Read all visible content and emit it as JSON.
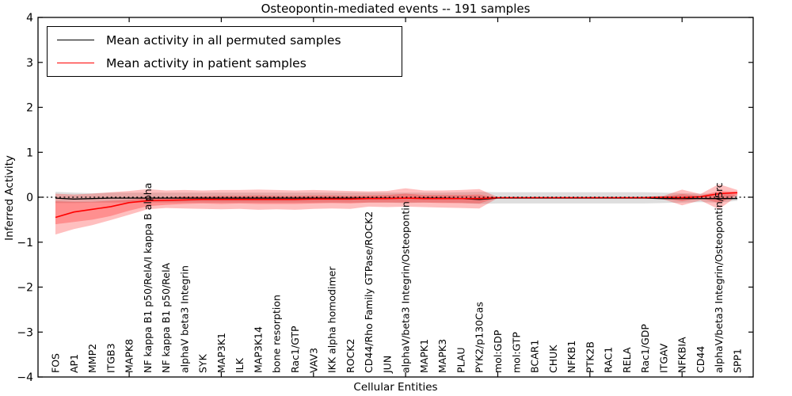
{
  "figure": {
    "background": "#ffffff"
  },
  "legend": {
    "items": [
      {
        "label": "Mean activity in all permuted samples",
        "color": "#000000"
      },
      {
        "label": "Mean activity in patient samples",
        "color": "#ff0000"
      }
    ]
  },
  "chart_data": {
    "type": "line",
    "title": "Osteopontin-mediated events -- 191 samples",
    "xlabel": "Cellular Entities",
    "ylabel": "Inferred Activity",
    "ylim": [
      -4,
      4
    ],
    "yticks": [
      -4,
      -3,
      -2,
      -1,
      0,
      1,
      2,
      3,
      4
    ],
    "xtick_every": 5,
    "grid": false,
    "legend_position": "upper left",
    "zero_line": 0,
    "colors": {
      "patient": "#ff0000",
      "permuted": "#000000",
      "patient_band": "#ff0000",
      "permuted_band": "#999999"
    },
    "categories": [
      "FOS",
      "AP1",
      "MMP2",
      "ITGB3",
      "MAPK8",
      "NF kappa B1 p50/RelA/I kappa B alpha",
      "NF kappa B1 p50/RelA",
      "alphaV beta3 Integrin",
      "SYK",
      "MAP3K1",
      "ILK",
      "MAP3K14",
      "bone resorption",
      "Rac1/GTP",
      "VAV3",
      "IKK alpha homodimer",
      "ROCK2",
      "CD44/Rho Family GTPase/ROCK2",
      "JUN",
      "alphaV/beta3 Integrin/Osteopontin",
      "MAPK1",
      "MAPK3",
      "PLAU",
      "PYK2/p130Cas",
      "mol:GDP",
      "mol:GTP",
      "BCAR1",
      "CHUK",
      "NFKB1",
      "PTK2B",
      "RAC1",
      "RELA",
      "Rac1/GDP",
      "ITGAV",
      "NFKBIA",
      "CD44",
      "alphaV/beta3 Integrin/Osteopontin/Src",
      "SPP1"
    ],
    "series": [
      {
        "name": "Mean activity in all permuted samples",
        "color": "#000000",
        "values": [
          -0.02,
          -0.04,
          -0.03,
          -0.02,
          -0.02,
          -0.02,
          -0.02,
          -0.02,
          -0.02,
          -0.02,
          -0.02,
          -0.02,
          -0.02,
          -0.02,
          -0.02,
          -0.02,
          -0.02,
          -0.02,
          -0.02,
          -0.02,
          -0.02,
          -0.02,
          -0.03,
          -0.05,
          -0.02,
          -0.02,
          -0.02,
          -0.02,
          -0.02,
          -0.02,
          -0.02,
          -0.02,
          -0.02,
          -0.03,
          -0.03,
          -0.03,
          -0.03,
          -0.03
        ]
      },
      {
        "name": "Mean activity in patient samples",
        "color": "#ff0000",
        "values": [
          -0.45,
          -0.33,
          -0.27,
          -0.21,
          -0.12,
          -0.08,
          -0.07,
          -0.06,
          -0.05,
          -0.05,
          -0.05,
          -0.05,
          -0.05,
          -0.05,
          -0.04,
          -0.04,
          -0.04,
          -0.03,
          -0.03,
          -0.02,
          -0.03,
          -0.03,
          -0.03,
          -0.03,
          -0.01,
          -0.01,
          -0.01,
          -0.01,
          -0.01,
          -0.01,
          -0.01,
          -0.01,
          -0.01,
          0.0,
          -0.01,
          0.01,
          0.08,
          0.1
        ]
      }
    ],
    "bands": [
      {
        "name": "permuted-band",
        "color": "#999999",
        "opacity": 0.32,
        "hi": [
          0.12,
          0.1,
          0.09,
          0.1,
          0.1,
          0.1,
          0.1,
          0.1,
          0.1,
          0.1,
          0.1,
          0.1,
          0.1,
          0.1,
          0.1,
          0.1,
          0.1,
          0.1,
          0.1,
          0.1,
          0.1,
          0.1,
          0.11,
          0.12,
          0.11,
          0.11,
          0.11,
          0.11,
          0.11,
          0.11,
          0.11,
          0.11,
          0.11,
          0.1,
          0.09,
          0.08,
          0.08,
          0.05
        ],
        "lo": [
          -0.13,
          -0.13,
          -0.12,
          -0.12,
          -0.12,
          -0.12,
          -0.12,
          -0.12,
          -0.12,
          -0.12,
          -0.12,
          -0.12,
          -0.12,
          -0.12,
          -0.12,
          -0.12,
          -0.12,
          -0.12,
          -0.12,
          -0.13,
          -0.12,
          -0.12,
          -0.13,
          -0.15,
          -0.14,
          -0.14,
          -0.14,
          -0.14,
          -0.14,
          -0.14,
          -0.14,
          -0.14,
          -0.14,
          -0.13,
          -0.12,
          -0.11,
          -0.12,
          -0.08
        ]
      },
      {
        "name": "patient-band-outer",
        "color": "#ff0000",
        "opacity": 0.25,
        "hi": [
          0.08,
          0.06,
          0.08,
          0.11,
          0.14,
          0.18,
          0.15,
          0.16,
          0.15,
          0.16,
          0.16,
          0.17,
          0.16,
          0.15,
          0.16,
          0.15,
          0.14,
          0.13,
          0.14,
          0.2,
          0.15,
          0.15,
          0.16,
          0.18,
          0.0,
          0.0,
          0.0,
          0.0,
          0.0,
          0.0,
          0.0,
          0.0,
          0.01,
          0.03,
          0.17,
          0.07,
          0.29,
          0.16
        ],
        "lo": [
          -0.83,
          -0.71,
          -0.62,
          -0.51,
          -0.39,
          -0.27,
          -0.24,
          -0.25,
          -0.26,
          -0.27,
          -0.26,
          -0.28,
          -0.27,
          -0.28,
          -0.26,
          -0.25,
          -0.26,
          -0.21,
          -0.22,
          -0.21,
          -0.22,
          -0.23,
          -0.24,
          -0.25,
          -0.02,
          -0.02,
          -0.02,
          -0.02,
          -0.02,
          -0.02,
          -0.02,
          -0.02,
          -0.02,
          -0.05,
          -0.18,
          -0.07,
          -0.27,
          0.03
        ]
      },
      {
        "name": "patient-band-inner",
        "color": "#ff0000",
        "opacity": 0.25,
        "hi": [
          -0.09,
          -0.1,
          -0.1,
          -0.08,
          -0.06,
          -0.02,
          -0.01,
          0.02,
          0.02,
          0.03,
          0.03,
          0.04,
          0.03,
          0.03,
          0.04,
          0.04,
          0.03,
          0.04,
          0.05,
          0.08,
          0.05,
          0.05,
          0.05,
          0.06,
          -0.01,
          -0.01,
          -0.01,
          -0.01,
          -0.01,
          -0.01,
          -0.01,
          -0.01,
          0.0,
          0.01,
          0.07,
          0.03,
          0.14,
          0.12
        ],
        "lo": [
          -0.6,
          -0.55,
          -0.5,
          -0.42,
          -0.3,
          -0.2,
          -0.17,
          -0.15,
          -0.14,
          -0.15,
          -0.14,
          -0.15,
          -0.15,
          -0.15,
          -0.14,
          -0.13,
          -0.14,
          -0.12,
          -0.12,
          -0.12,
          -0.12,
          -0.13,
          -0.13,
          -0.14,
          -0.01,
          -0.01,
          -0.01,
          -0.01,
          -0.01,
          -0.01,
          -0.01,
          -0.01,
          -0.01,
          -0.02,
          -0.09,
          -0.02,
          -0.13,
          0.06
        ]
      }
    ]
  }
}
